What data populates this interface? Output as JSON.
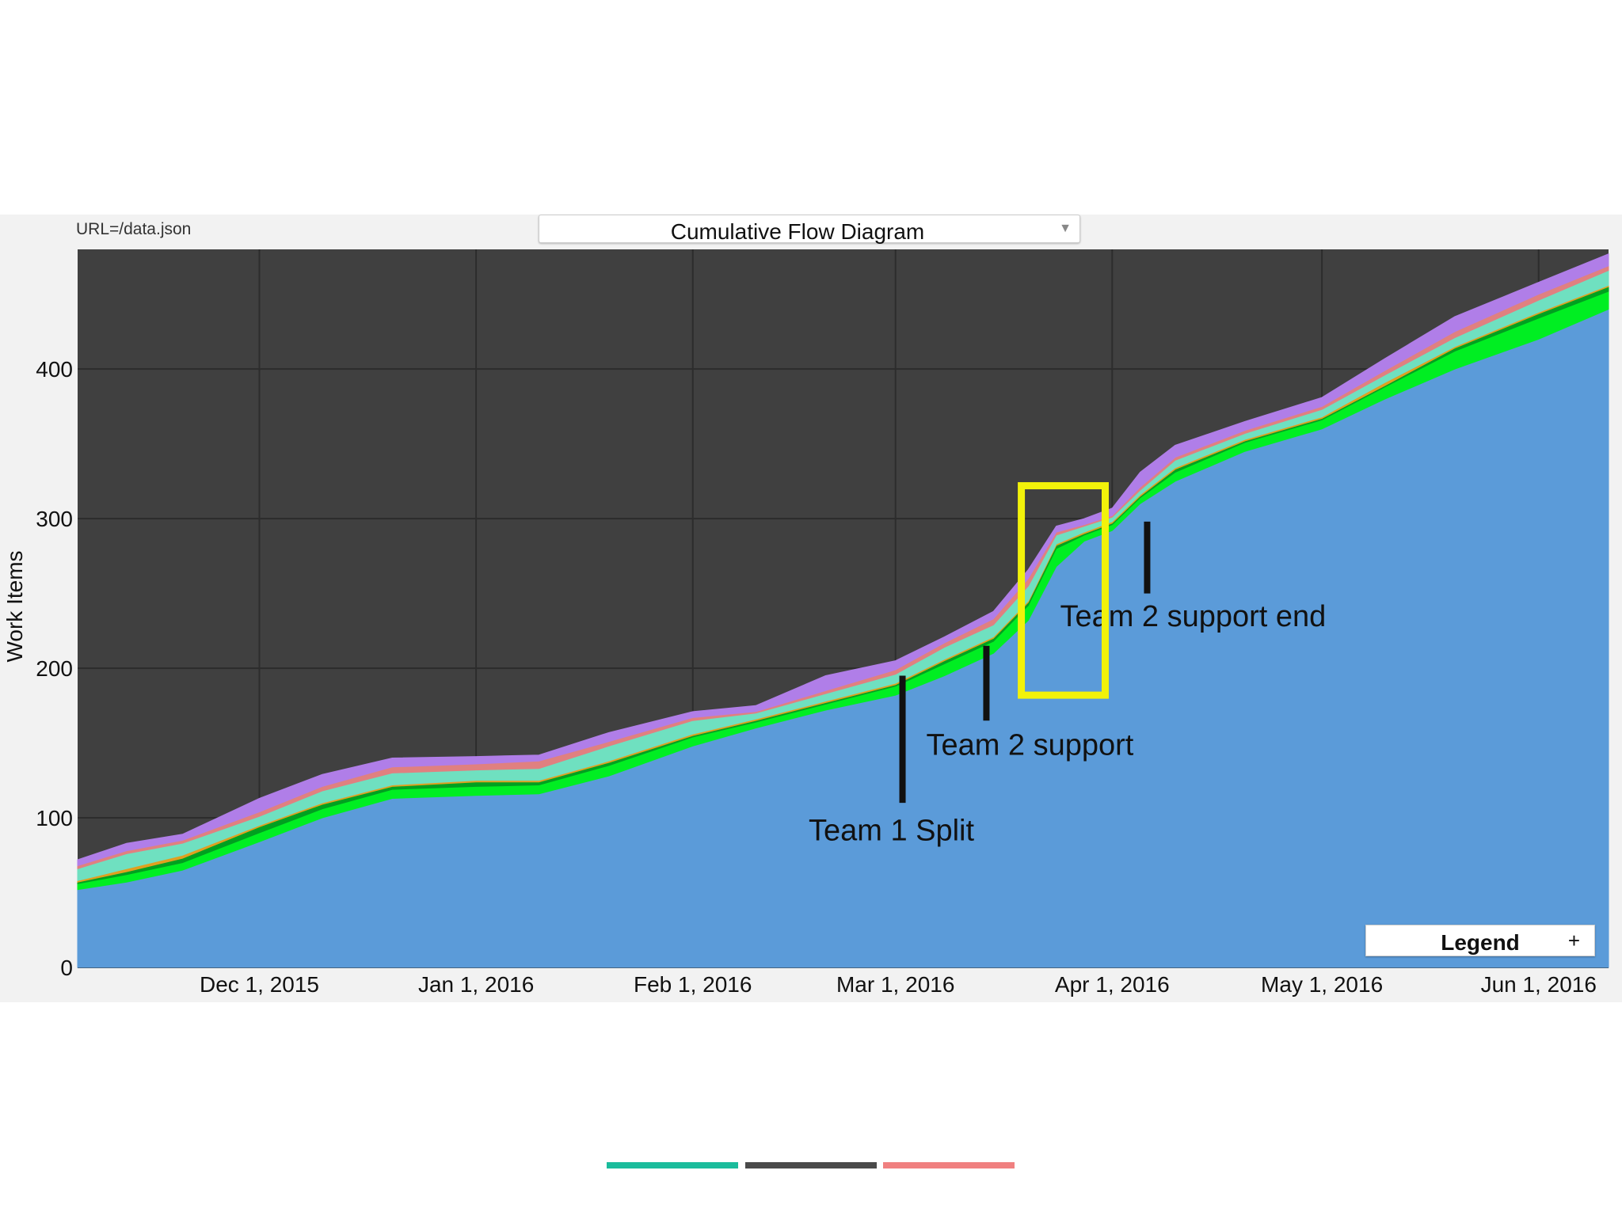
{
  "header": {
    "url_label": "URL=/data.json",
    "view_select": "Cumulative Flow Diagram",
    "view_select_arrow": "▼"
  },
  "legend": {
    "label": "Legend",
    "expand": "+"
  },
  "slide_bars": [
    {
      "color": "#1abc9c"
    },
    {
      "color": "#4a4a4a"
    },
    {
      "color": "#f08080"
    }
  ],
  "colors": {
    "plot_background": "#404040",
    "grid": "#2c2c2c",
    "highlight_box": "#f2f20a",
    "marker": "#111111"
  },
  "chart_data": {
    "type": "area",
    "stacked": true,
    "title": "Cumulative Flow Diagram",
    "xlabel": "",
    "ylabel": "Work Items",
    "ylim": [
      0,
      480
    ],
    "xlim": [
      "2015-11-05",
      "2016-06-11"
    ],
    "y_ticks": [
      0,
      100,
      200,
      300,
      400
    ],
    "x_ticks": [
      {
        "date": "2015-12-01",
        "label": "Dec 1, 2015"
      },
      {
        "date": "2016-01-01",
        "label": "Jan 1, 2016"
      },
      {
        "date": "2016-02-01",
        "label": "Feb 1, 2016"
      },
      {
        "date": "2016-03-01",
        "label": "Mar 1, 2016"
      },
      {
        "date": "2016-04-01",
        "label": "Apr 1, 2016"
      },
      {
        "date": "2016-05-01",
        "label": "May 1, 2016"
      },
      {
        "date": "2016-06-01",
        "label": "Jun 1, 2016"
      }
    ],
    "grid": true,
    "legend_placement": "bottom-right",
    "x": [
      "2015-11-05",
      "2015-11-12",
      "2015-11-20",
      "2015-12-01",
      "2015-12-10",
      "2015-12-20",
      "2016-01-01",
      "2016-01-10",
      "2016-01-20",
      "2016-02-01",
      "2016-02-10",
      "2016-02-20",
      "2016-03-01",
      "2016-03-08",
      "2016-03-15",
      "2016-03-20",
      "2016-03-24",
      "2016-03-28",
      "2016-04-01",
      "2016-04-05",
      "2016-04-10",
      "2016-04-20",
      "2016-05-01",
      "2016-05-10",
      "2016-05-20",
      "2016-06-01",
      "2016-06-11"
    ],
    "series": [
      {
        "color": "#5b9bd9",
        "values": [
          52,
          57,
          65,
          84,
          100,
          113,
          115,
          116,
          128,
          148,
          160,
          172,
          182,
          195,
          210,
          232,
          268,
          285,
          292,
          310,
          325,
          345,
          360,
          380,
          400,
          420,
          440
        ]
      },
      {
        "color": "#00ee22",
        "values": [
          4,
          5,
          5,
          6,
          6,
          6,
          6,
          6,
          7,
          6,
          4,
          4,
          6,
          8,
          8,
          10,
          12,
          4,
          4,
          4,
          6,
          6,
          6,
          8,
          12,
          14,
          12
        ]
      },
      {
        "color": "#00a020",
        "values": [
          1,
          2,
          3,
          4,
          3,
          2,
          3,
          2,
          2,
          1,
          1,
          1,
          1,
          2,
          2,
          2,
          2,
          1,
          1,
          1,
          2,
          1,
          1,
          1,
          2,
          3,
          3
        ]
      },
      {
        "color": "#e0a020",
        "values": [
          1,
          2,
          2,
          1,
          1,
          1,
          1,
          1,
          1,
          1,
          1,
          1,
          1,
          1,
          1,
          1,
          1,
          1,
          1,
          1,
          1,
          1,
          1,
          2,
          1,
          1,
          1
        ]
      },
      {
        "color": "#6fe0c0",
        "values": [
          8,
          10,
          8,
          6,
          8,
          8,
          7,
          8,
          10,
          9,
          4,
          5,
          6,
          8,
          8,
          10,
          6,
          4,
          3,
          3,
          5,
          4,
          5,
          5,
          6,
          8,
          10
        ]
      },
      {
        "color": "#e08080",
        "values": [
          2,
          2,
          2,
          3,
          3,
          4,
          4,
          5,
          3,
          2,
          1,
          2,
          3,
          3,
          4,
          5,
          2,
          1,
          1,
          2,
          2,
          2,
          2,
          3,
          4,
          4,
          3
        ]
      },
      {
        "color": "#b07ee8",
        "values": [
          4,
          5,
          4,
          9,
          8,
          6,
          5,
          4,
          6,
          4,
          4,
          10,
          6,
          4,
          5,
          6,
          4,
          4,
          5,
          10,
          8,
          6,
          6,
          8,
          10,
          8,
          8
        ]
      }
    ],
    "annotations": [
      {
        "label": "Team 1 Split",
        "date": "2016-03-02",
        "marker_y": [
          110,
          195
        ],
        "label_y": 85
      },
      {
        "label": "Team 2 support",
        "date": "2016-03-14",
        "marker_y": [
          165,
          215
        ],
        "label_y": 142
      },
      {
        "label": "Team 2 support end",
        "date": "2016-04-06",
        "marker_y": [
          250,
          298
        ],
        "label_y": 228
      }
    ],
    "highlight": {
      "date_range": [
        "2016-03-19",
        "2016-03-31"
      ],
      "value_range": [
        182,
        322
      ]
    }
  }
}
